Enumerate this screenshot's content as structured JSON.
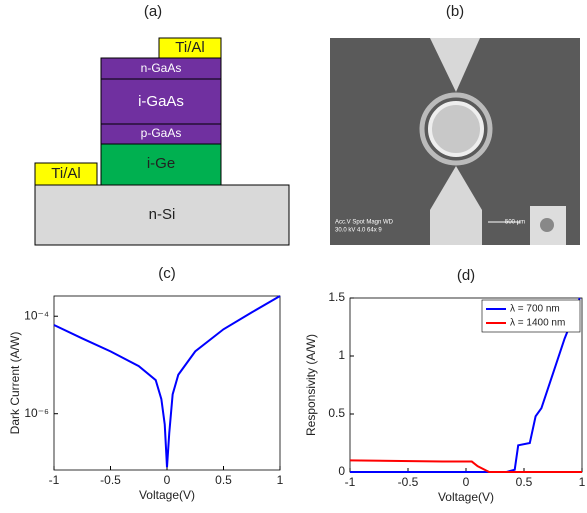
{
  "panels": {
    "a": {
      "label": "(a)",
      "layers": [
        {
          "label": "n-Si"
        },
        {
          "label": "Ti/Al"
        },
        {
          "label": "i-Ge"
        },
        {
          "label": "p-GaAs"
        },
        {
          "label": "i-GaAs"
        },
        {
          "label": "n-GaAs"
        },
        {
          "label": "Ti/Al"
        }
      ]
    },
    "b": {
      "label": "(b)",
      "info_line1": "Acc.V  Spot Magn   WD",
      "info_line2": "30.0 kV 4.0   64x   9",
      "scale": "500 µm"
    }
  },
  "chart_data": [
    {
      "type": "line",
      "title": "(c)",
      "xlabel": "Voltage(V)",
      "ylabel": "Dark Current (A/W)",
      "log_y": true,
      "xlim": [
        -1,
        1
      ],
      "xticks": [
        -1,
        -0.5,
        0,
        0.5,
        1
      ],
      "ylim": [
        7e-08,
        0.00026
      ],
      "yticks": [
        {
          "value": 1e-06,
          "label": "10⁻⁶"
        },
        {
          "value": 0.0001,
          "label": "10⁻⁴"
        }
      ],
      "x": [
        -1,
        -0.75,
        -0.5,
        -0.25,
        -0.1,
        -0.05,
        -0.02,
        0,
        0.02,
        0.05,
        0.1,
        0.25,
        0.5,
        0.75,
        1
      ],
      "series": [
        {
          "color": "#0000ff",
          "values": [
            6.6e-05,
            3.5e-05,
            1.9e-05,
            9.5e-06,
            4.9e-06,
            2e-06,
            6e-07,
            8e-08,
            4e-07,
            2.5e-06,
            6.3e-06,
            1.9e-05,
            5.4e-05,
            0.00012,
            0.00026
          ]
        }
      ]
    },
    {
      "type": "line",
      "title": "(d)",
      "xlabel": "Voltage(V)",
      "ylabel": "Responsivity (A/W)",
      "log_y": false,
      "xlim": [
        -1,
        1
      ],
      "xticks": [
        -1,
        -0.5,
        0,
        0.5,
        1
      ],
      "ylim": [
        0,
        1.5
      ],
      "yticks": [
        0,
        0.5,
        1,
        1.5
      ],
      "legend": "upper right",
      "x": [
        -1,
        -0.2,
        0.05,
        0.1,
        0.18,
        0.2,
        0.35,
        0.42,
        0.45,
        0.55,
        0.6,
        0.65,
        0.75,
        0.85,
        0.95,
        0.98,
        1
      ],
      "series": [
        {
          "name": "λ = 700 nm",
          "color": "#0000ff",
          "values": [
            0,
            0,
            0,
            0,
            0,
            0,
            0,
            0.02,
            0.23,
            0.25,
            0.48,
            0.55,
            0.85,
            1.15,
            1.4,
            1.5,
            null
          ]
        },
        {
          "name": "λ = 1400 nm",
          "color": "#ff0000",
          "values": [
            0.1,
            0.09,
            0.09,
            0.05,
            0.01,
            0,
            0,
            0,
            0,
            0,
            0,
            0,
            0,
            0,
            0,
            0,
            0
          ]
        }
      ]
    }
  ]
}
